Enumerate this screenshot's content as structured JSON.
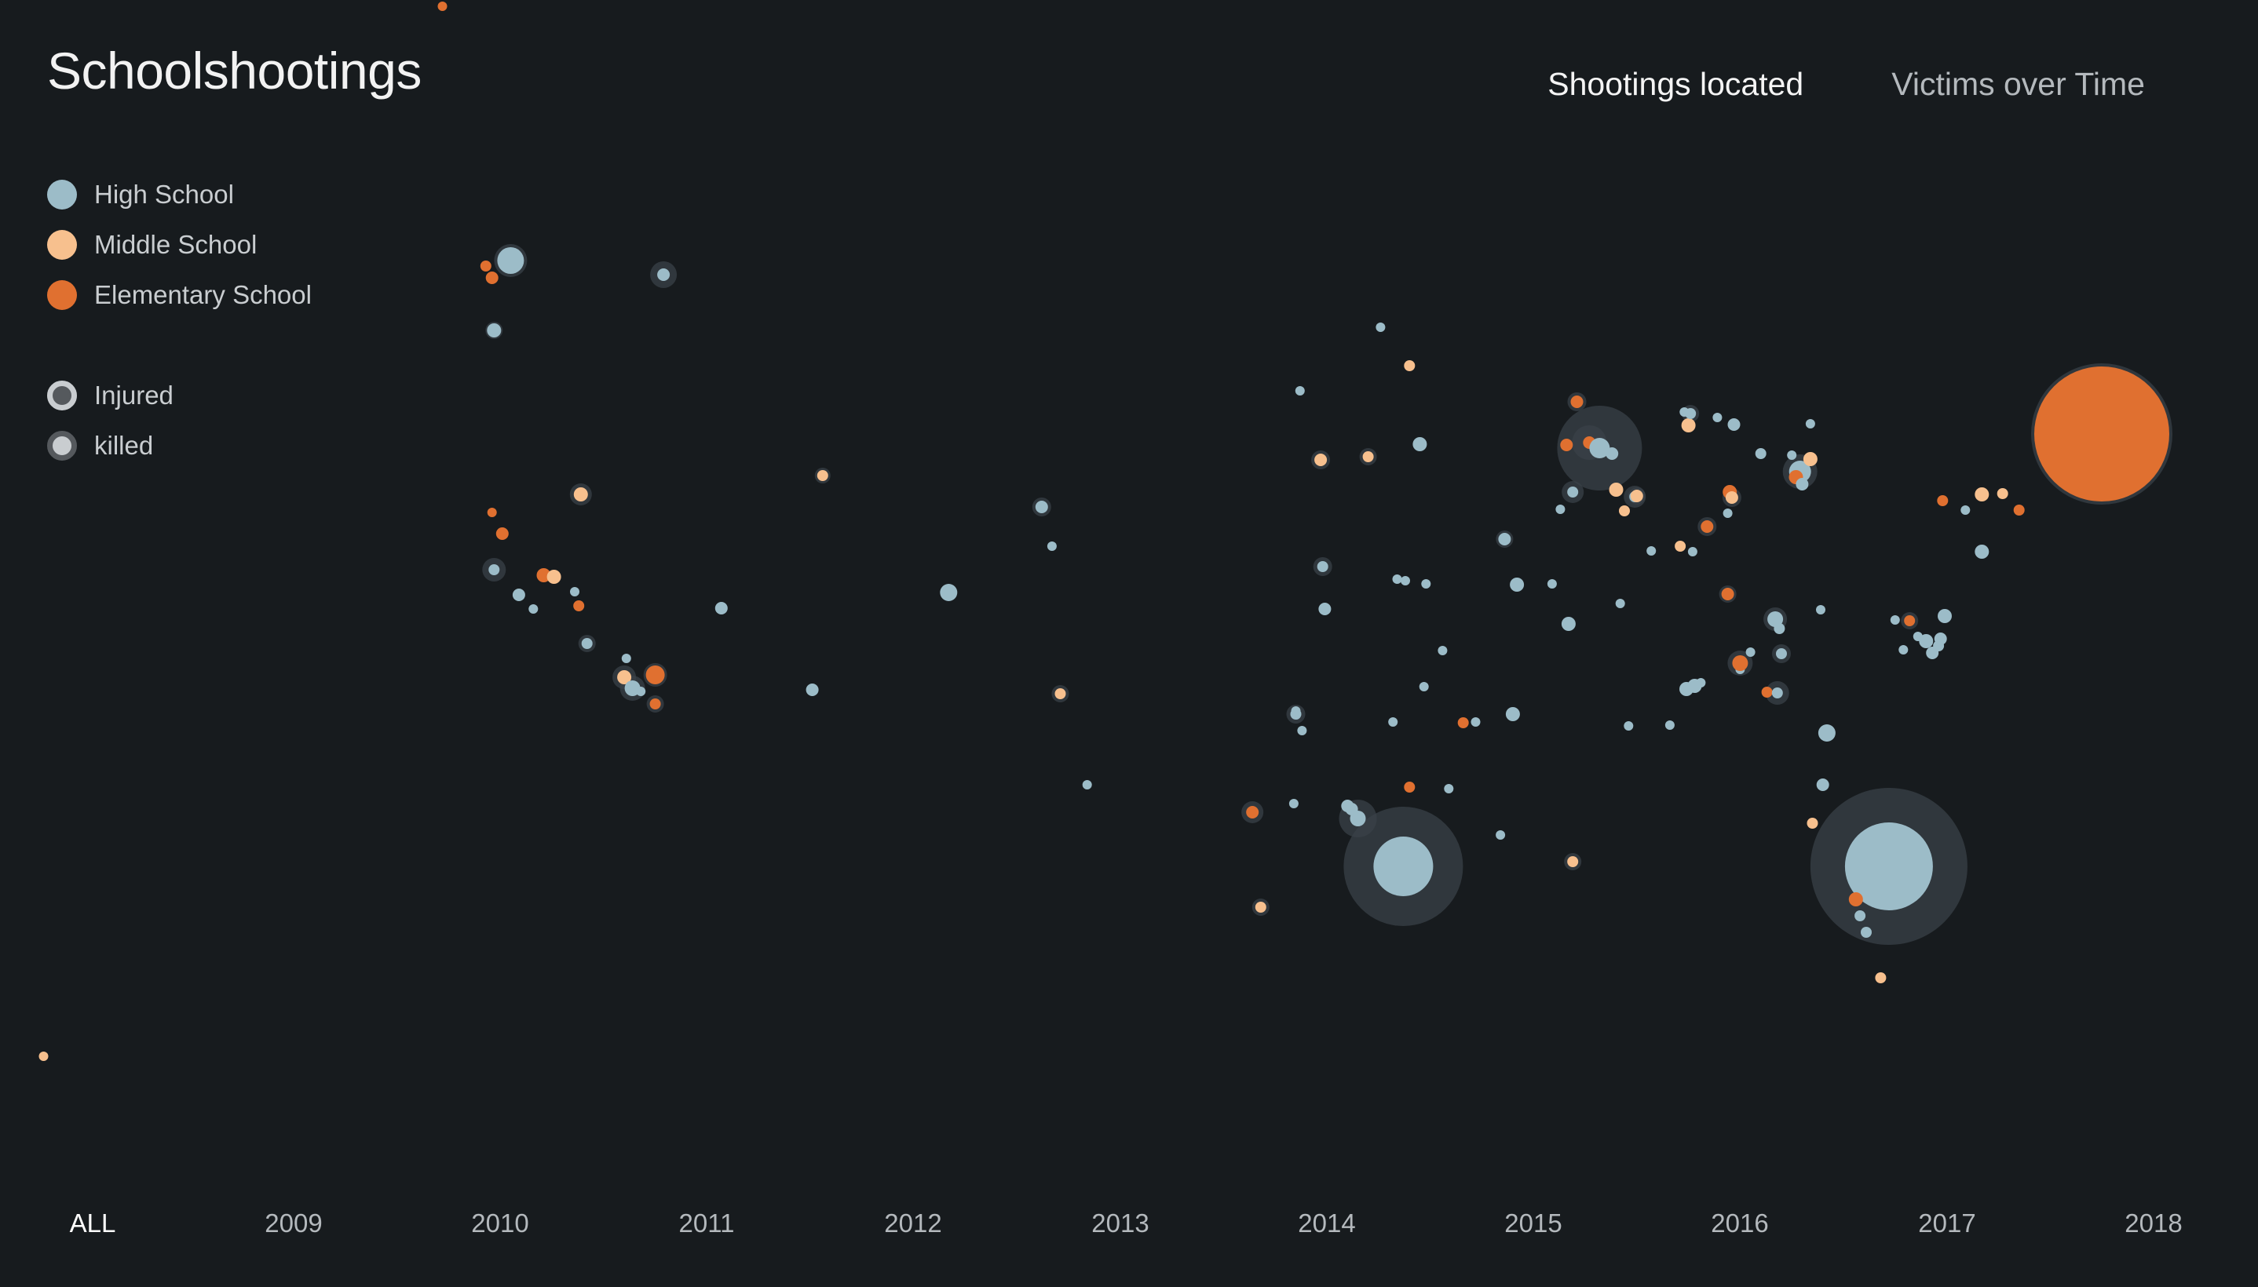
{
  "title": "Schoolshootings",
  "nav": [
    {
      "label": "Shootings located",
      "active": true
    },
    {
      "label": "Victims over Time",
      "active": false
    }
  ],
  "legend": {
    "types": [
      {
        "label": "High School",
        "color": "#9cbcc8"
      },
      {
        "label": "Middle School",
        "color": "#f7c08e"
      },
      {
        "label": "Elementary School",
        "color": "#e07030"
      }
    ],
    "outcomes": [
      {
        "label": "Injured",
        "style": "ring"
      },
      {
        "label": "killed",
        "style": "filled"
      }
    ]
  },
  "colors": {
    "background": "#171b1e",
    "high": "#9cbcc8",
    "middle": "#f7c08e",
    "elementary": "#e07030",
    "halo": "#3a4248"
  },
  "timeline": {
    "labels": [
      "ALL",
      "2009",
      "2010",
      "2011",
      "2012",
      "2013",
      "2014",
      "2015",
      "2016",
      "2017",
      "2018"
    ],
    "active": "ALL"
  },
  "chart_data": {
    "type": "scatter",
    "encoding": "bubble size = victims, fill = school type, halo = injured",
    "points": [
      {
        "year": 2009.72,
        "type": "elementary",
        "s": 6,
        "h": 0
      },
      {
        "year": 2007.79,
        "type": "middle",
        "s": 6,
        "h": 0
      },
      {
        "year": 2009.93,
        "type": "elementary",
        "s": 7,
        "h": 0
      },
      {
        "year": 2009.96,
        "type": "elementary",
        "s": 8,
        "h": 0
      },
      {
        "year": 2010.05,
        "type": "high",
        "s": 17,
        "h": 21
      },
      {
        "year": 2009.97,
        "type": "high",
        "s": 9,
        "h": 11
      },
      {
        "year": 2010.79,
        "type": "high",
        "s": 8,
        "h": 17
      },
      {
        "year": 2009.96,
        "type": "elementary",
        "s": 6,
        "h": 0
      },
      {
        "year": 2010.39,
        "type": "middle",
        "s": 9,
        "h": 14
      },
      {
        "year": 2010.21,
        "type": "elementary",
        "s": 9,
        "h": 0
      },
      {
        "year": 2010.01,
        "type": "elementary",
        "s": 8,
        "h": 0
      },
      {
        "year": 2009.97,
        "type": "high",
        "s": 7,
        "h": 15
      },
      {
        "year": 2010.26,
        "type": "middle",
        "s": 9,
        "h": 0
      },
      {
        "year": 2010.09,
        "type": "high",
        "s": 8,
        "h": 0
      },
      {
        "year": 2010.16,
        "type": "high",
        "s": 6,
        "h": 0
      },
      {
        "year": 2010.36,
        "type": "high",
        "s": 6,
        "h": 0
      },
      {
        "year": 2010.38,
        "type": "elementary",
        "s": 7,
        "h": 0
      },
      {
        "year": 2010.42,
        "type": "high",
        "s": 7,
        "h": 11
      },
      {
        "year": 2010.61,
        "type": "high",
        "s": 6,
        "h": 0
      },
      {
        "year": 2010.6,
        "type": "middle",
        "s": 9,
        "h": 15
      },
      {
        "year": 2010.64,
        "type": "high",
        "s": 10,
        "h": 16
      },
      {
        "year": 2010.68,
        "type": "high",
        "s": 6,
        "h": 0
      },
      {
        "year": 2010.75,
        "type": "elementary",
        "s": 12,
        "h": 15
      },
      {
        "year": 2010.75,
        "type": "elementary",
        "s": 7,
        "h": 11
      },
      {
        "year": 2011.07,
        "type": "high",
        "s": 8,
        "h": 0
      },
      {
        "year": 2011.56,
        "type": "middle",
        "s": 7,
        "h": 10
      },
      {
        "year": 2011.51,
        "type": "high",
        "s": 8,
        "h": 0
      },
      {
        "year": 2012.17,
        "type": "high",
        "s": 11,
        "h": 0
      },
      {
        "year": 2012.62,
        "type": "high",
        "s": 8,
        "h": 12
      },
      {
        "year": 2012.67,
        "type": "high",
        "s": 6,
        "h": 0
      },
      {
        "year": 2012.71,
        "type": "middle",
        "s": 7,
        "h": 11
      },
      {
        "year": 2012.84,
        "type": "high",
        "s": 6,
        "h": 0
      },
      {
        "year": 2013.64,
        "type": "elementary",
        "s": 8,
        "h": 14
      },
      {
        "year": 2013.68,
        "type": "middle",
        "s": 7,
        "h": 11
      },
      {
        "year": 2013.87,
        "type": "high",
        "s": 6,
        "h": 0
      },
      {
        "year": 2013.85,
        "type": "high",
        "s": 7,
        "h": 12
      },
      {
        "year": 2013.85,
        "type": "high",
        "s": 6,
        "h": 0
      },
      {
        "year": 2013.88,
        "type": "high",
        "s": 6,
        "h": 0
      },
      {
        "year": 2013.84,
        "type": "high",
        "s": 6,
        "h": 0
      },
      {
        "year": 2013.98,
        "type": "high",
        "s": 7,
        "h": 12
      },
      {
        "year": 2013.99,
        "type": "high",
        "s": 8,
        "h": 0
      },
      {
        "year": 2014.1,
        "type": "high",
        "s": 8,
        "h": 0
      },
      {
        "year": 2014.12,
        "type": "high",
        "s": 8,
        "h": 0
      },
      {
        "year": 2014.15,
        "type": "high",
        "s": 10,
        "h": 24
      },
      {
        "year": 2014.37,
        "type": "high",
        "s": 38,
        "h": 76
      },
      {
        "year": 2014.26,
        "type": "high",
        "s": 6,
        "h": 0
      },
      {
        "year": 2014.4,
        "type": "middle",
        "s": 7,
        "h": 0
      },
      {
        "year": 2014.45,
        "type": "high",
        "s": 9,
        "h": 0
      },
      {
        "year": 2014.34,
        "type": "high",
        "s": 6,
        "h": 0
      },
      {
        "year": 2013.97,
        "type": "middle",
        "s": 8,
        "h": 12
      },
      {
        "year": 2014.2,
        "type": "middle",
        "s": 7,
        "h": 11
      },
      {
        "year": 2014.38,
        "type": "high",
        "s": 6,
        "h": 0
      },
      {
        "year": 2014.48,
        "type": "high",
        "s": 6,
        "h": 0
      },
      {
        "year": 2014.56,
        "type": "high",
        "s": 6,
        "h": 0
      },
      {
        "year": 2014.47,
        "type": "high",
        "s": 6,
        "h": 0
      },
      {
        "year": 2014.32,
        "type": "high",
        "s": 6,
        "h": 0
      },
      {
        "year": 2014.4,
        "type": "elementary",
        "s": 7,
        "h": 0
      },
      {
        "year": 2014.59,
        "type": "high",
        "s": 6,
        "h": 0
      },
      {
        "year": 2014.66,
        "type": "elementary",
        "s": 7,
        "h": 0
      },
      {
        "year": 2014.72,
        "type": "high",
        "s": 6,
        "h": 0
      },
      {
        "year": 2014.84,
        "type": "high",
        "s": 6,
        "h": 0
      },
      {
        "year": 2014.86,
        "type": "high",
        "s": 8,
        "h": 11
      },
      {
        "year": 2014.92,
        "type": "high",
        "s": 9,
        "h": 0
      },
      {
        "year": 2014.9,
        "type": "high",
        "s": 9,
        "h": 0
      },
      {
        "year": 2015.09,
        "type": "high",
        "s": 6,
        "h": 0
      },
      {
        "year": 2015.17,
        "type": "high",
        "s": 9,
        "h": 0
      },
      {
        "year": 2015.19,
        "type": "middle",
        "s": 7,
        "h": 11
      },
      {
        "year": 2015.13,
        "type": "high",
        "s": 6,
        "h": 0
      },
      {
        "year": 2015.19,
        "type": "high",
        "s": 7,
        "h": 14
      },
      {
        "year": 2015.16,
        "type": "elementary",
        "s": 8,
        "h": 0
      },
      {
        "year": 2015.21,
        "type": "elementary",
        "s": 8,
        "h": 12
      },
      {
        "year": 2015.27,
        "type": "elementary",
        "s": 8,
        "h": 22
      },
      {
        "year": 2015.32,
        "type": "high",
        "s": 13,
        "h": 54
      },
      {
        "year": 2015.38,
        "type": "high",
        "s": 8,
        "h": 0
      },
      {
        "year": 2015.4,
        "type": "middle",
        "s": 9,
        "h": 0
      },
      {
        "year": 2015.42,
        "type": "high",
        "s": 6,
        "h": 0
      },
      {
        "year": 2015.46,
        "type": "high",
        "s": 6,
        "h": 0
      },
      {
        "year": 2015.49,
        "type": "high",
        "s": 7,
        "h": 14
      },
      {
        "year": 2015.44,
        "type": "middle",
        "s": 7,
        "h": 0
      },
      {
        "year": 2015.5,
        "type": "middle",
        "s": 8,
        "h": 11
      },
      {
        "year": 2015.57,
        "type": "high",
        "s": 6,
        "h": 0
      },
      {
        "year": 2015.66,
        "type": "high",
        "s": 6,
        "h": 0
      },
      {
        "year": 2015.71,
        "type": "middle",
        "s": 7,
        "h": 0
      },
      {
        "year": 2015.73,
        "type": "high",
        "s": 6,
        "h": 0
      },
      {
        "year": 2015.75,
        "type": "middle",
        "s": 9,
        "h": 0
      },
      {
        "year": 2015.76,
        "type": "high",
        "s": 7,
        "h": 11
      },
      {
        "year": 2015.77,
        "type": "high",
        "s": 6,
        "h": 0
      },
      {
        "year": 2015.74,
        "type": "high",
        "s": 9,
        "h": 0
      },
      {
        "year": 2015.78,
        "type": "high",
        "s": 9,
        "h": 0
      },
      {
        "year": 2015.81,
        "type": "high",
        "s": 6,
        "h": 0
      },
      {
        "year": 2015.84,
        "type": "elementary",
        "s": 8,
        "h": 12
      },
      {
        "year": 2015.89,
        "type": "high",
        "s": 6,
        "h": 0
      },
      {
        "year": 2015.94,
        "type": "elementary",
        "s": 8,
        "h": 11
      },
      {
        "year": 2015.97,
        "type": "high",
        "s": 8,
        "h": 0
      },
      {
        "year": 2015.95,
        "type": "elementary",
        "s": 9,
        "h": 0
      },
      {
        "year": 2015.96,
        "type": "middle",
        "s": 8,
        "h": 12
      },
      {
        "year": 2016.0,
        "type": "high",
        "s": 6,
        "h": 0
      },
      {
        "year": 2015.94,
        "type": "high",
        "s": 6,
        "h": 0
      },
      {
        "year": 2016.0,
        "type": "elementary",
        "s": 10,
        "h": 16
      },
      {
        "year": 2016.05,
        "type": "high",
        "s": 6,
        "h": 0
      },
      {
        "year": 2016.13,
        "type": "elementary",
        "s": 7,
        "h": 0
      },
      {
        "year": 2016.18,
        "type": "high",
        "s": 7,
        "h": 15
      },
      {
        "year": 2016.25,
        "type": "high",
        "s": 6,
        "h": 0
      },
      {
        "year": 2016.29,
        "type": "high",
        "s": 14,
        "h": 22
      },
      {
        "year": 2016.34,
        "type": "middle",
        "s": 9,
        "h": 0
      },
      {
        "year": 2016.27,
        "type": "elementary",
        "s": 9,
        "h": 0
      },
      {
        "year": 2016.3,
        "type": "high",
        "s": 8,
        "h": 0
      },
      {
        "year": 2016.34,
        "type": "high",
        "s": 6,
        "h": 0
      },
      {
        "year": 2016.39,
        "type": "high",
        "s": 6,
        "h": 0
      },
      {
        "year": 2016.17,
        "type": "high",
        "s": 10,
        "h": 15
      },
      {
        "year": 2016.1,
        "type": "high",
        "s": 7,
        "h": 0
      },
      {
        "year": 2016.19,
        "type": "high",
        "s": 7,
        "h": 0
      },
      {
        "year": 2016.2,
        "type": "high",
        "s": 7,
        "h": 12
      },
      {
        "year": 2016.42,
        "type": "high",
        "s": 11,
        "h": 0
      },
      {
        "year": 2016.4,
        "type": "high",
        "s": 8,
        "h": 0
      },
      {
        "year": 2016.35,
        "type": "middle",
        "s": 7,
        "h": 0
      },
      {
        "year": 2016.72,
        "type": "high",
        "s": 56,
        "h": 100
      },
      {
        "year": 2016.56,
        "type": "elementary",
        "s": 9,
        "h": 0
      },
      {
        "year": 2016.58,
        "type": "high",
        "s": 7,
        "h": 0
      },
      {
        "year": 2016.61,
        "type": "high",
        "s": 7,
        "h": 0
      },
      {
        "year": 2016.68,
        "type": "middle",
        "s": 7,
        "h": 0
      },
      {
        "year": 2016.75,
        "type": "high",
        "s": 6,
        "h": 0
      },
      {
        "year": 2016.79,
        "type": "high",
        "s": 6,
        "h": 0
      },
      {
        "year": 2016.82,
        "type": "elementary",
        "s": 7,
        "h": 11
      },
      {
        "year": 2016.86,
        "type": "high",
        "s": 6,
        "h": 0
      },
      {
        "year": 2016.9,
        "type": "high",
        "s": 9,
        "h": 0
      },
      {
        "year": 2016.93,
        "type": "high",
        "s": 8,
        "h": 0
      },
      {
        "year": 2016.96,
        "type": "high",
        "s": 7,
        "h": 0
      },
      {
        "year": 2016.97,
        "type": "high",
        "s": 8,
        "h": 0
      },
      {
        "year": 2016.99,
        "type": "high",
        "s": 9,
        "h": 0
      },
      {
        "year": 2016.98,
        "type": "elementary",
        "s": 7,
        "h": 0
      },
      {
        "year": 2017.09,
        "type": "high",
        "s": 6,
        "h": 0
      },
      {
        "year": 2017.17,
        "type": "high",
        "s": 9,
        "h": 0
      },
      {
        "year": 2017.17,
        "type": "middle",
        "s": 9,
        "h": 0
      },
      {
        "year": 2017.27,
        "type": "middle",
        "s": 7,
        "h": 0
      },
      {
        "year": 2017.35,
        "type": "elementary",
        "s": 7,
        "h": 0
      },
      {
        "year": 2017.55,
        "type": "elementary",
        "s": 8,
        "h": 0
      },
      {
        "year": 2017.78,
        "type": "high",
        "s": 6,
        "h": 0
      },
      {
        "year": 2017.75,
        "type": "elementary",
        "s": 86,
        "h": 90
      }
    ]
  }
}
